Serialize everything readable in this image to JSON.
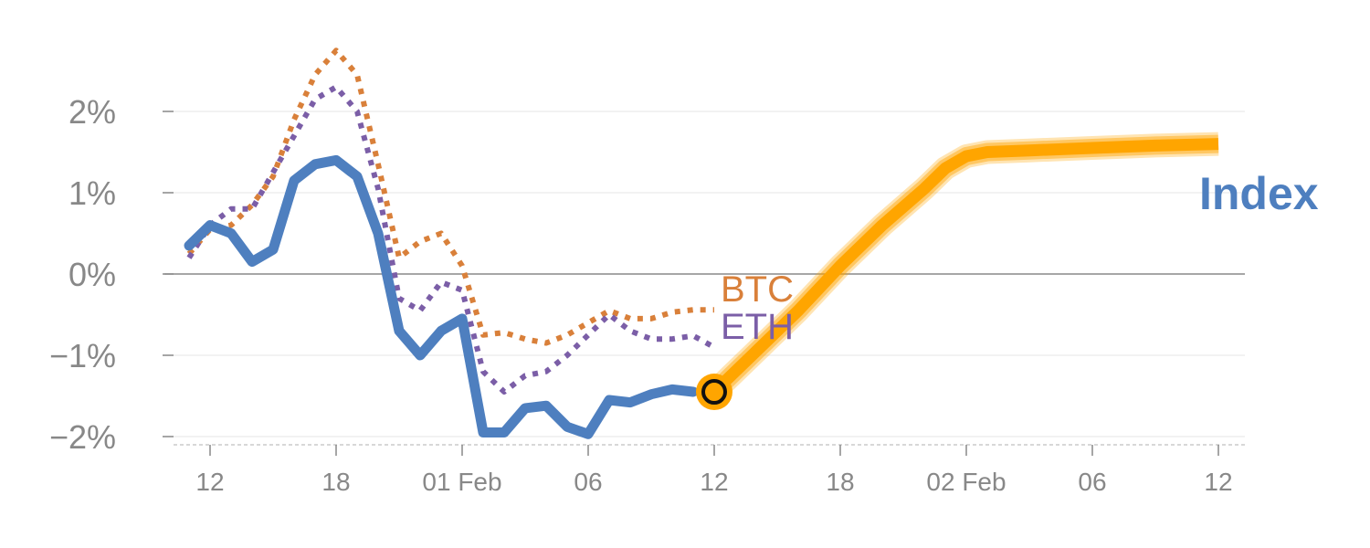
{
  "chart_data": {
    "type": "line",
    "title": "",
    "xlabel": "",
    "ylabel": "",
    "ylim": [
      -2.1,
      2.8
    ],
    "grid": true,
    "y_ticks": [
      {
        "value": 2,
        "label": "2%"
      },
      {
        "value": 1,
        "label": "1%"
      },
      {
        "value": 0,
        "label": "0%"
      },
      {
        "value": -1,
        "label": "−1%"
      },
      {
        "value": -2,
        "label": "−2%"
      }
    ],
    "x_ticks": [
      {
        "x": 1,
        "label": "12"
      },
      {
        "x": 7,
        "label": "18"
      },
      {
        "x": 13,
        "label": "01 Feb"
      },
      {
        "x": 19,
        "label": "06"
      },
      {
        "x": 25,
        "label": "12"
      },
      {
        "x": 31,
        "label": "18"
      },
      {
        "x": 37,
        "label": "02 Feb"
      },
      {
        "x": 43,
        "label": "06"
      },
      {
        "x": 49,
        "label": "12"
      }
    ],
    "colors": {
      "Index": "#4e7fbf",
      "BTC": "#d9803a",
      "ETH": "#7b5ea7",
      "forecast": "#ffa500",
      "marker_fill": "#ffa500",
      "marker_ring": "#111111",
      "grid": "#e6e6e6",
      "zero": "#888888"
    },
    "series": [
      {
        "name": "Index",
        "style": "solid",
        "label": "Index",
        "x": [
          0,
          1,
          2,
          3,
          4,
          5,
          6,
          7,
          8,
          9,
          10,
          11,
          12,
          13,
          14,
          15,
          16,
          17,
          18,
          19,
          20,
          21,
          22,
          23,
          24
        ],
        "values": [
          0.35,
          0.6,
          0.5,
          0.15,
          0.3,
          1.15,
          1.35,
          1.4,
          1.2,
          0.5,
          -0.7,
          -1.0,
          -0.7,
          -0.55,
          -1.95,
          -1.95,
          -1.65,
          -1.62,
          -1.88,
          -1.97,
          -1.55,
          -1.58,
          -1.48,
          -1.42,
          -1.45
        ]
      },
      {
        "name": "BTC",
        "style": "dotted",
        "label": "BTC",
        "x": [
          0,
          1,
          2,
          3,
          4,
          5,
          6,
          7,
          8,
          9,
          10,
          11,
          12,
          13,
          14,
          15,
          16,
          17,
          18,
          19,
          20,
          21,
          22,
          23,
          24,
          25
        ],
        "values": [
          0.25,
          0.55,
          0.6,
          0.85,
          1.2,
          1.9,
          2.45,
          2.75,
          2.45,
          1.35,
          0.2,
          0.4,
          0.5,
          0.1,
          -0.75,
          -0.72,
          -0.8,
          -0.85,
          -0.75,
          -0.6,
          -0.45,
          -0.55,
          -0.55,
          -0.47,
          -0.44,
          -0.44
        ]
      },
      {
        "name": "ETH",
        "style": "dotted",
        "label": "ETH",
        "x": [
          0,
          1,
          2,
          3,
          4,
          5,
          6,
          7,
          8,
          9,
          10,
          11,
          12,
          13,
          14,
          15,
          16,
          17,
          18,
          19,
          20,
          21,
          22,
          23,
          24,
          25
        ],
        "values": [
          0.2,
          0.6,
          0.8,
          0.8,
          1.25,
          1.7,
          2.15,
          2.3,
          2.0,
          1.05,
          -0.3,
          -0.45,
          -0.1,
          -0.2,
          -1.2,
          -1.45,
          -1.25,
          -1.2,
          -1.0,
          -0.75,
          -0.5,
          -0.7,
          -0.8,
          -0.8,
          -0.76,
          -0.9
        ]
      },
      {
        "name": "Forecast",
        "style": "band",
        "x": [
          25,
          27,
          29,
          31,
          33,
          35,
          36,
          37,
          38,
          40,
          43,
          46,
          49
        ],
        "values": [
          -1.45,
          -0.95,
          -0.45,
          0.1,
          0.6,
          1.05,
          1.3,
          1.45,
          1.5,
          1.52,
          1.55,
          1.58,
          1.6
        ]
      }
    ],
    "marker": {
      "x": 25,
      "value": -1.45
    }
  }
}
